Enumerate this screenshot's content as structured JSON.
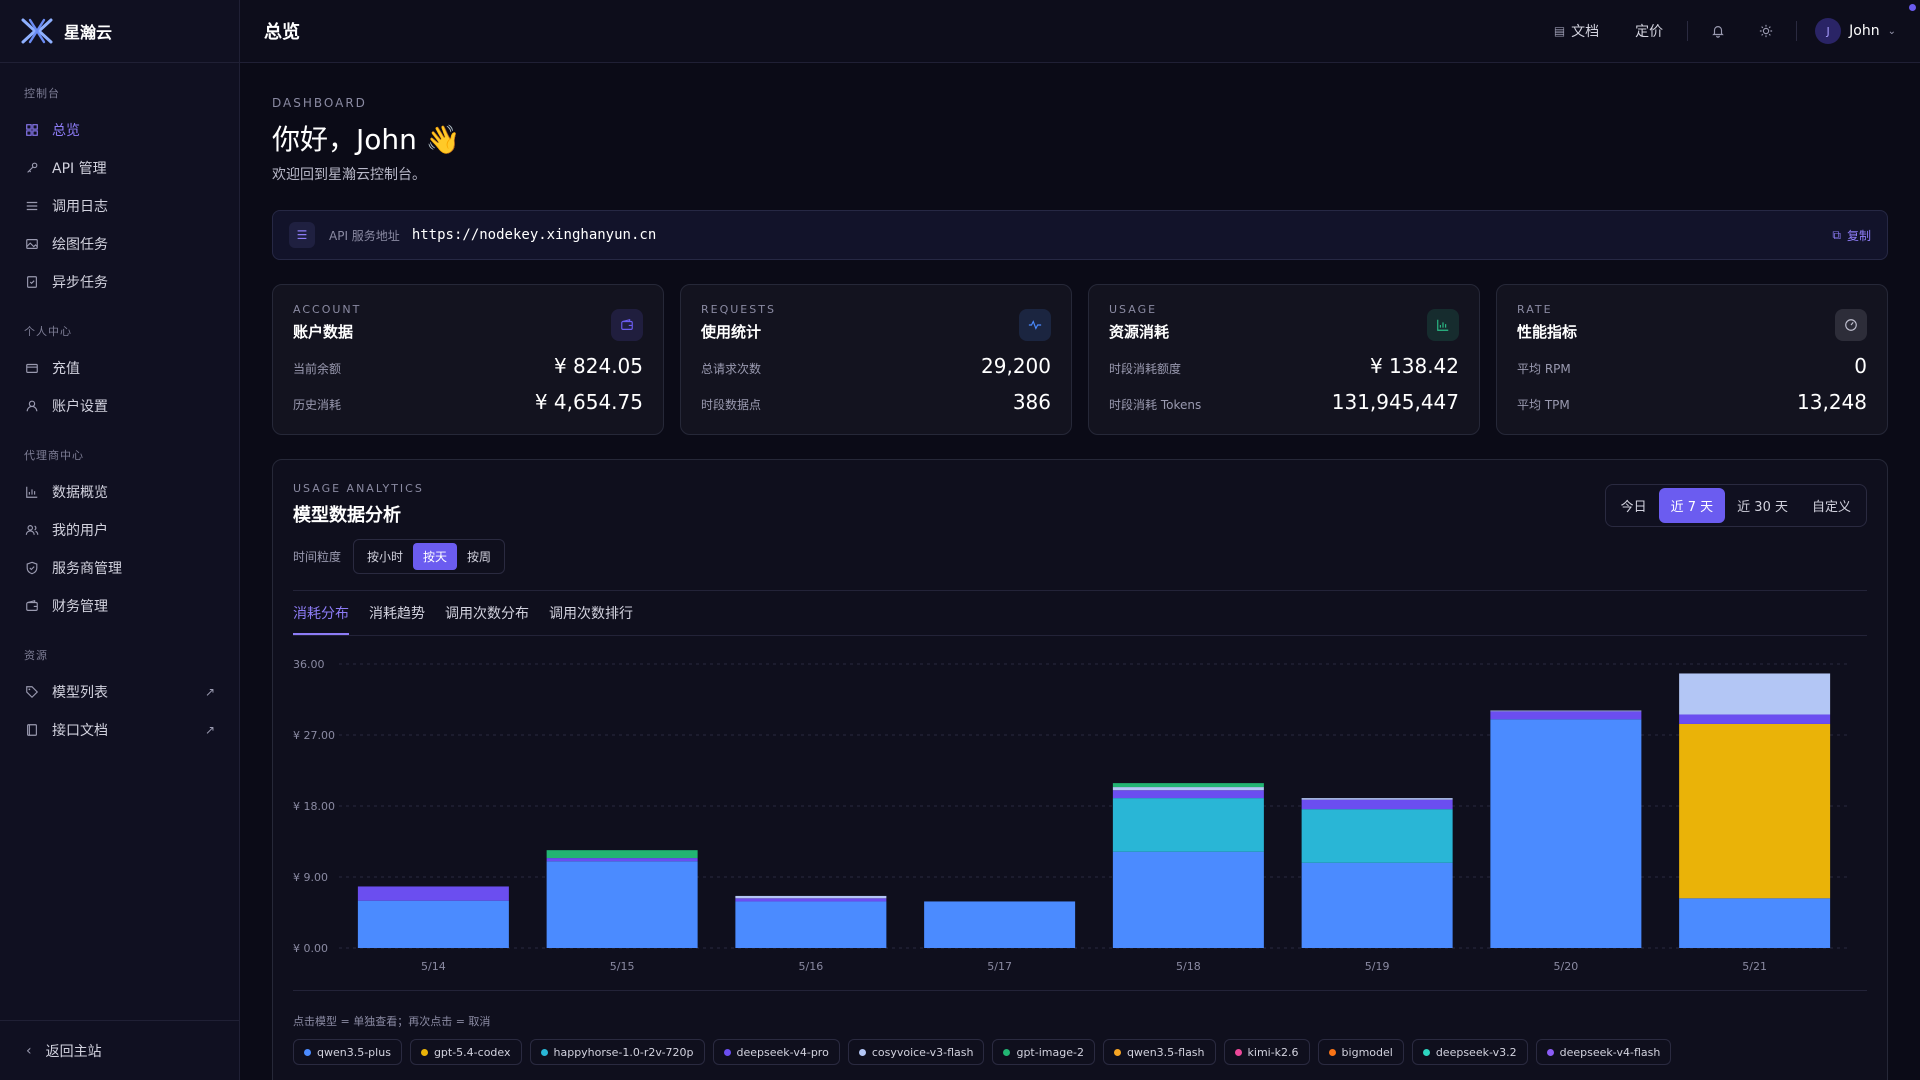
{
  "brand": {
    "name": "星瀚云"
  },
  "sidebar": {
    "sections": [
      {
        "title": "控制台",
        "items": [
          {
            "label": "总览",
            "icon": "grid-icon",
            "active": true
          },
          {
            "label": "API 管理",
            "icon": "key-icon"
          },
          {
            "label": "调用日志",
            "icon": "list-icon"
          },
          {
            "label": "绘图任务",
            "icon": "image-icon"
          },
          {
            "label": "异步任务",
            "icon": "task-icon"
          }
        ]
      },
      {
        "title": "个人中心",
        "items": [
          {
            "label": "充值",
            "icon": "card-icon"
          },
          {
            "label": "账户设置",
            "icon": "user-icon"
          }
        ]
      },
      {
        "title": "代理商中心",
        "items": [
          {
            "label": "数据概览",
            "icon": "bar-chart-icon"
          },
          {
            "label": "我的用户",
            "icon": "users-icon"
          },
          {
            "label": "服务商管理",
            "icon": "shield-icon"
          },
          {
            "label": "财务管理",
            "icon": "wallet-icon"
          }
        ]
      },
      {
        "title": "资源",
        "items": [
          {
            "label": "模型列表",
            "icon": "tag-icon",
            "external": true
          },
          {
            "label": "接口文档",
            "icon": "book-icon",
            "external": true
          }
        ]
      }
    ],
    "back_home": "返回主站"
  },
  "header": {
    "title": "总览",
    "docs": "文档",
    "pricing": "定价",
    "user": {
      "initial": "J",
      "name": "John"
    }
  },
  "main": {
    "eyebrow": "DASHBOARD",
    "greeting": "你好，John 👋",
    "welcome": "欢迎回到星瀚云控制台。",
    "api": {
      "label": "API 服务地址",
      "url": "https://nodekey.xinghanyun.cn",
      "copy": "复制"
    },
    "cards": [
      {
        "eyebrow": "ACCOUNT",
        "title": "账户数据",
        "icon": "wallet-icon",
        "accent": "#6b5cf0",
        "rows": [
          {
            "label": "当前余额",
            "value": "¥ 824.05"
          },
          {
            "label": "历史消耗",
            "value": "¥ 4,654.75"
          }
        ]
      },
      {
        "eyebrow": "REQUESTS",
        "title": "使用统计",
        "icon": "pulse-icon",
        "accent": "#4b8bff",
        "rows": [
          {
            "label": "总请求次数",
            "value": "29,200"
          },
          {
            "label": "时段数据点",
            "value": "386"
          }
        ]
      },
      {
        "eyebrow": "USAGE",
        "title": "资源消耗",
        "icon": "bar-chart-icon",
        "accent": "#2bbf88",
        "rows": [
          {
            "label": "时段消耗额度",
            "value": "¥ 138.42"
          },
          {
            "label": "时段消耗 Tokens",
            "value": "131,945,447"
          }
        ]
      },
      {
        "eyebrow": "RATE",
        "title": "性能指标",
        "icon": "gauge-icon",
        "accent": "#c0c0d0",
        "rows": [
          {
            "label": "平均 RPM",
            "value": "0"
          },
          {
            "label": "平均 TPM",
            "value": "13,248"
          }
        ]
      }
    ],
    "analytics": {
      "eyebrow": "USAGE ANALYTICS",
      "title": "模型数据分析",
      "ranges": [
        {
          "label": "今日"
        },
        {
          "label": "近 7 天",
          "active": true
        },
        {
          "label": "近 30 天"
        },
        {
          "label": "自定义"
        }
      ],
      "granularity_label": "时间粒度",
      "granularity": [
        {
          "label": "按小时"
        },
        {
          "label": "按天",
          "active": true
        },
        {
          "label": "按周"
        }
      ],
      "tabs": [
        {
          "label": "消耗分布",
          "active": true
        },
        {
          "label": "消耗趋势"
        },
        {
          "label": "调用次数分布"
        },
        {
          "label": "调用次数排行"
        }
      ],
      "legend_hint": "点击模型 = 单独查看；再次点击 = 取消",
      "legend": [
        {
          "name": "qwen3.5-plus",
          "color": "#4b8bff"
        },
        {
          "name": "gpt-5.4-codex",
          "color": "#eab308"
        },
        {
          "name": "happyhorse-1.0-r2v-720p",
          "color": "#29b6d6"
        },
        {
          "name": "deepseek-v4-pro",
          "color": "#6b4ef0"
        },
        {
          "name": "cosyvoice-v3-flash",
          "color": "#b3c6f5"
        },
        {
          "name": "gpt-image-2",
          "color": "#22b573"
        },
        {
          "name": "qwen3.5-flash",
          "color": "#f5a524"
        },
        {
          "name": "kimi-k2.6",
          "color": "#ec4899"
        },
        {
          "name": "bigmodel",
          "color": "#f97316"
        },
        {
          "name": "deepseek-v3.2",
          "color": "#2dd4bf"
        },
        {
          "name": "deepseek-v4-flash",
          "color": "#8b5cf6"
        }
      ]
    }
  },
  "chart_data": {
    "type": "bar",
    "stacked": true,
    "categories": [
      "5/14",
      "5/15",
      "5/16",
      "5/17",
      "5/18",
      "5/19",
      "5/20",
      "5/21"
    ],
    "y_ticks": [
      "¥ 0.00",
      "¥ 9.00",
      "¥ 18.00",
      "¥ 27.00",
      "36.00"
    ],
    "ylim": [
      0,
      36
    ],
    "grid": true,
    "series": [
      {
        "name": "qwen3.5-plus",
        "color": "#4b8bff",
        "values": [
          6.0,
          11.0,
          5.9,
          5.9,
          12.2,
          10.8,
          29.0,
          6.3
        ]
      },
      {
        "name": "gpt-5.4-codex",
        "color": "#eab308",
        "values": [
          0,
          0,
          0,
          0,
          0,
          0,
          0,
          22.1
        ]
      },
      {
        "name": "happyhorse-1.0-r2v-720p",
        "color": "#29b6d6",
        "values": [
          0,
          0,
          0,
          0,
          6.8,
          6.8,
          0,
          0
        ]
      },
      {
        "name": "deepseek-v4-pro",
        "color": "#6b4ef0",
        "values": [
          1.8,
          0.4,
          0.4,
          0,
          1.0,
          1.2,
          1.0,
          1.2
        ]
      },
      {
        "name": "cosyvoice-v3-flash",
        "color": "#b3c6f5",
        "values": [
          0,
          0,
          0.3,
          0,
          0.4,
          0.2,
          0.1,
          5.2
        ]
      },
      {
        "name": "gpt-image-2",
        "color": "#22b573",
        "values": [
          0,
          1.0,
          0,
          0,
          0.5,
          0,
          0,
          0
        ]
      }
    ]
  }
}
